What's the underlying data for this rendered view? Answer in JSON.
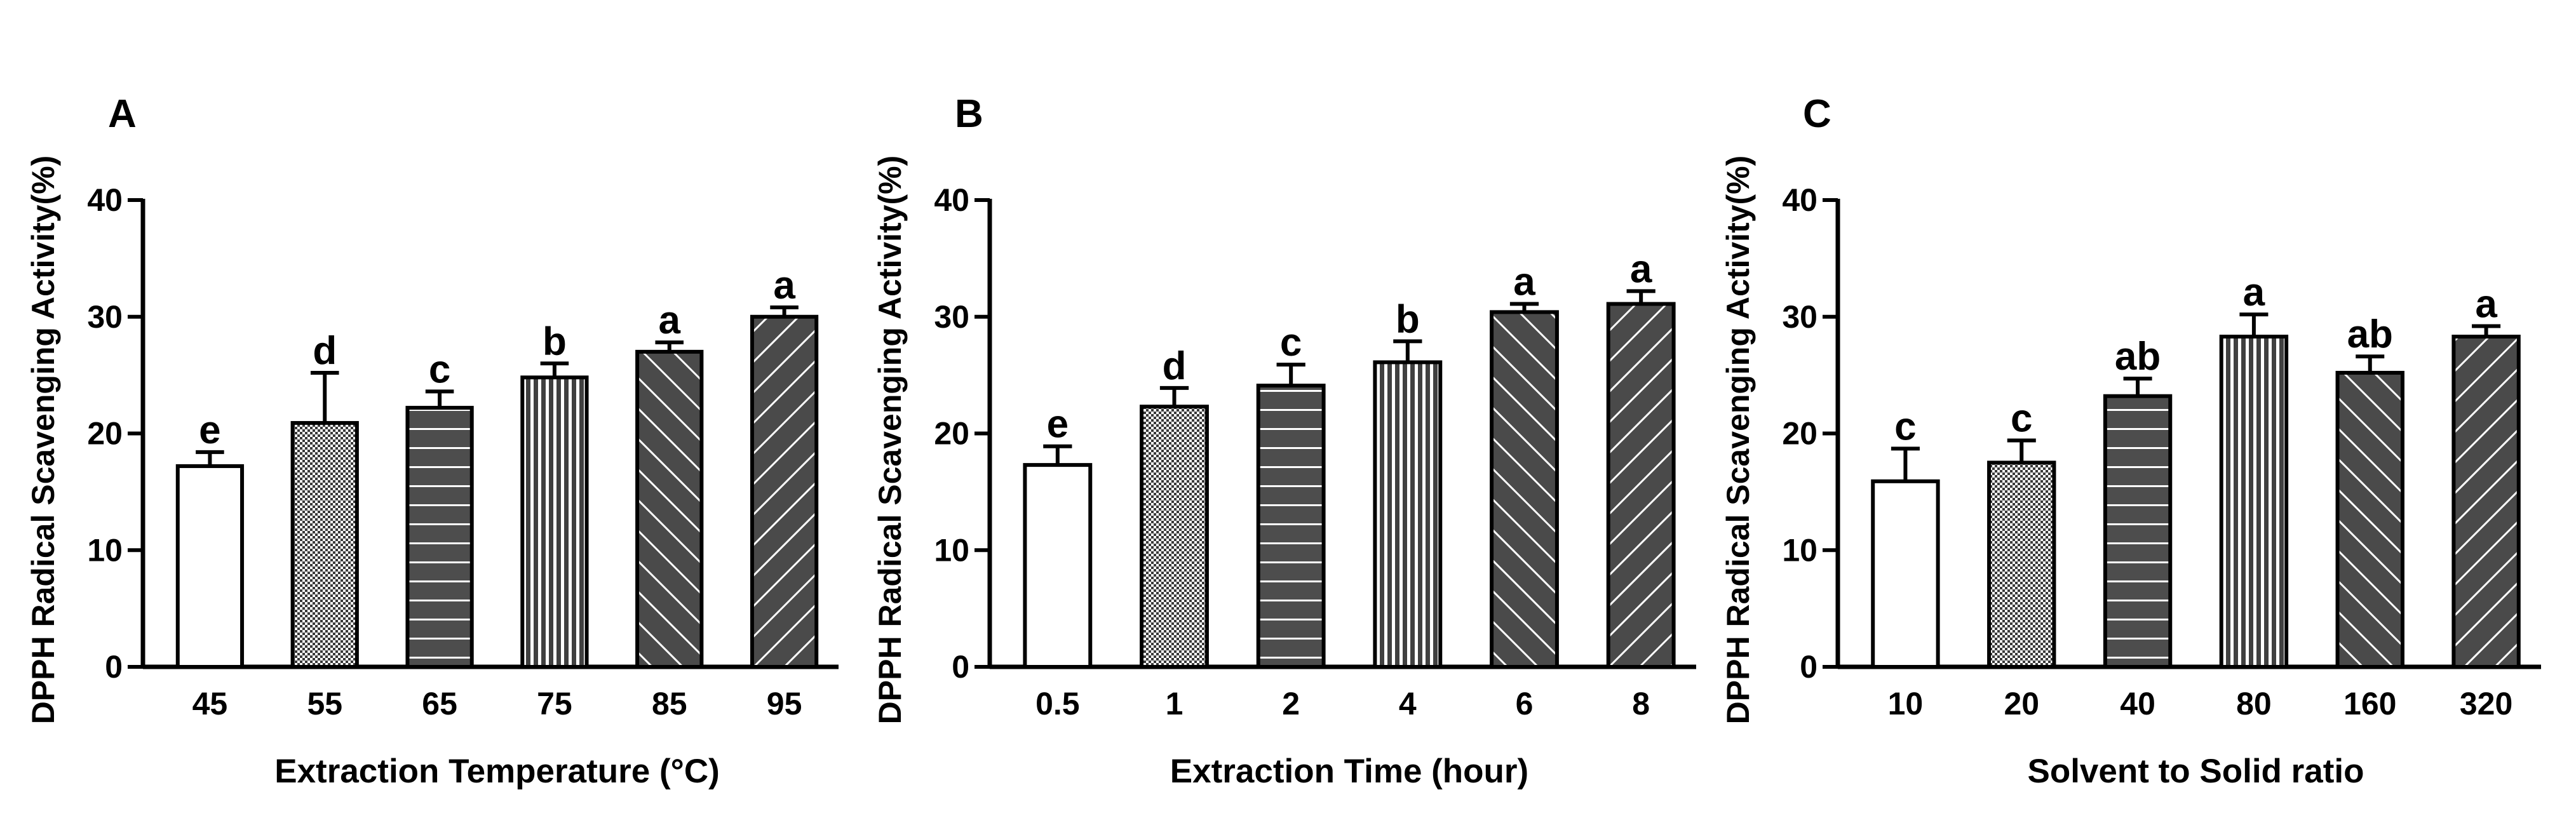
{
  "figure": {
    "y_axis_label": "DPPH  Radical Scavenging Activity(%)"
  },
  "colors": {
    "axis": "#000000",
    "bar_fill_plain": "#ffffff",
    "bar_fill_dark": "#4a4a4a",
    "bar_fill_mid": "#5a5a5a",
    "pattern_line": "#ffffff"
  },
  "chart_data": [
    {
      "panel_label": "A",
      "type": "bar",
      "title": "",
      "xlabel": "Extraction Temperature (°C)",
      "ylabel": "DPPH  Radical Scavenging Activity(%)",
      "ylim": [
        0,
        40
      ],
      "yticks": [
        "0",
        "10",
        "20",
        "30",
        "40"
      ],
      "categories": [
        "45",
        "55",
        "65",
        "75",
        "85",
        "95"
      ],
      "values": [
        17.2,
        20.9,
        22.2,
        24.8,
        27.0,
        30.0
      ],
      "errors": [
        1.2,
        4.3,
        1.4,
        1.2,
        0.8,
        0.8
      ],
      "letters": [
        "e",
        "d",
        "c",
        "b",
        "a",
        "a"
      ],
      "patterns": [
        "plain",
        "checker",
        "hlines",
        "vlines",
        "diag-up",
        "diag-down"
      ]
    },
    {
      "panel_label": "B",
      "type": "bar",
      "title": "",
      "xlabel": "Extraction Time (hour)",
      "ylabel": "DPPH  Radical Scavenging Activity(%)",
      "ylim": [
        0,
        40
      ],
      "yticks": [
        "0",
        "10",
        "20",
        "30",
        "40"
      ],
      "categories": [
        "0.5",
        "1",
        "2",
        "4",
        "6",
        "8"
      ],
      "values": [
        17.3,
        22.3,
        24.1,
        26.1,
        30.4,
        31.1
      ],
      "errors": [
        1.6,
        1.6,
        1.8,
        1.8,
        0.7,
        1.1
      ],
      "letters": [
        "e",
        "d",
        "c",
        "b",
        "a",
        "a"
      ],
      "patterns": [
        "plain",
        "checker",
        "hlines",
        "vlines",
        "diag-up",
        "diag-down"
      ]
    },
    {
      "panel_label": "C",
      "type": "bar",
      "title": "",
      "xlabel": "Solvent to Solid ratio",
      "ylabel": "DPPH  Radical Scavenging Activity(%)",
      "ylim": [
        0,
        40
      ],
      "yticks": [
        "0",
        "10",
        "20",
        "30",
        "40"
      ],
      "categories": [
        "10",
        "20",
        "40",
        "80",
        "160",
        "320"
      ],
      "values": [
        15.9,
        17.5,
        23.2,
        28.3,
        25.2,
        28.3
      ],
      "errors": [
        2.8,
        1.9,
        1.5,
        1.9,
        1.4,
        0.9
      ],
      "letters": [
        "c",
        "c",
        "ab",
        "a",
        "ab",
        "a"
      ],
      "patterns": [
        "plain",
        "checker",
        "hlines",
        "vlines",
        "diag-up",
        "diag-down"
      ]
    }
  ]
}
